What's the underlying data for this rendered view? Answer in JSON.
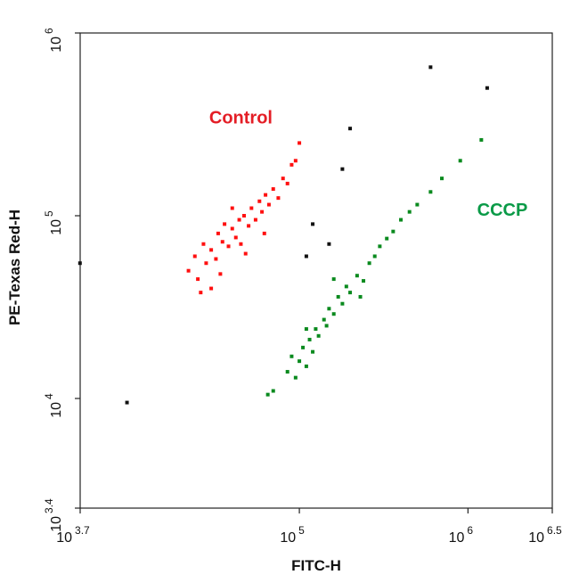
{
  "chart_data": {
    "type": "scatter",
    "x_label": "FITC-H",
    "y_label": "PE-Texas Red-H",
    "x_log": true,
    "y_log": true,
    "xlim": [
      5011.87,
      3162277.66
    ],
    "ylim": [
      2511.89,
      1000000
    ],
    "xticks": [
      {
        "value": 5011.87,
        "base": "10",
        "exponent": "3.7"
      },
      {
        "value": 100000,
        "base": "10",
        "exponent": "5"
      },
      {
        "value": 1000000,
        "base": "10",
        "exponent": "6"
      },
      {
        "value": 3162277.66,
        "base": "10",
        "exponent": "6.5"
      }
    ],
    "yticks": [
      {
        "value": 2511.89,
        "base": "10",
        "exponent": "3.4"
      },
      {
        "value": 10000,
        "base": "10",
        "exponent": "4"
      },
      {
        "value": 100000,
        "base": "10",
        "exponent": "5"
      },
      {
        "value": 1000000,
        "base": "10",
        "exponent": "6"
      }
    ],
    "annotations": [
      {
        "text": "Control",
        "x": 45000,
        "y": 340000,
        "color": "#e41e26"
      },
      {
        "text": "CCCP",
        "x": 1600000,
        "y": 106000,
        "color": "#0a9a47"
      }
    ],
    "series": [
      {
        "color": "#ff1010",
        "x": [
          22000,
          25000,
          24000,
          28000,
          27000,
          30000,
          32000,
          33000,
          35000,
          36000,
          38000,
          40000,
          42000,
          44000,
          45000,
          47000,
          50000,
          52000,
          55000,
          58000,
          60000,
          63000,
          66000,
          70000,
          75000,
          80000,
          85000,
          90000,
          30000,
          26000,
          62000,
          48000,
          100000,
          95000,
          40000,
          34000
        ],
        "values": [
          50000,
          45000,
          60000,
          55000,
          70000,
          65000,
          58000,
          80000,
          72000,
          90000,
          68000,
          85000,
          76000,
          95000,
          70000,
          100000,
          88000,
          110000,
          95000,
          120000,
          105000,
          130000,
          115000,
          140000,
          125000,
          160000,
          150000,
          190000,
          40000,
          38000,
          80000,
          62000,
          250000,
          200000,
          110000,
          48000
        ]
      },
      {
        "color": "#0a8a1e",
        "x": [
          85000,
          95000,
          90000,
          100000,
          105000,
          110000,
          115000,
          120000,
          125000,
          130000,
          140000,
          145000,
          150000,
          160000,
          170000,
          180000,
          190000,
          200000,
          220000,
          240000,
          260000,
          280000,
          300000,
          330000,
          360000,
          400000,
          450000,
          500000,
          600000,
          700000,
          900000,
          70000,
          65000,
          1200000,
          160000,
          110000,
          230000
        ],
        "values": [
          14000,
          13000,
          17000,
          16000,
          19000,
          15000,
          21000,
          18000,
          24000,
          22000,
          27000,
          25000,
          31000,
          29000,
          36000,
          33000,
          41000,
          38000,
          47000,
          44000,
          55000,
          60000,
          68000,
          75000,
          82000,
          95000,
          105000,
          115000,
          135000,
          160000,
          200000,
          11000,
          10500,
          260000,
          45000,
          24000,
          36000
        ]
      },
      {
        "color": "#111111",
        "x": [
          5000,
          9500,
          120000,
          150000,
          180000,
          600000,
          1300000,
          200000,
          110000
        ],
        "values": [
          55000,
          9500,
          90000,
          70000,
          180000,
          650000,
          500000,
          300000,
          60000
        ]
      }
    ]
  }
}
